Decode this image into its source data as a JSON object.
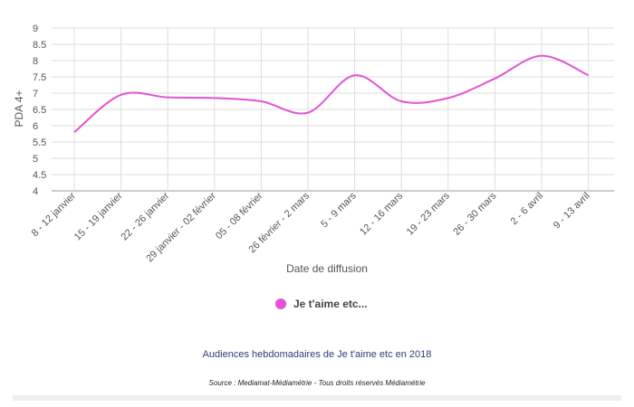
{
  "chart_data": {
    "type": "line",
    "title": "",
    "xlabel": "Date de diffusion",
    "ylabel": "PDA 4+",
    "ylim": [
      4,
      9
    ],
    "yticks": [
      "4",
      "4.5",
      "5",
      "5.5",
      "6",
      "6.5",
      "7",
      "7.5",
      "8",
      "8.5",
      "9"
    ],
    "grid": true,
    "legend_position": "bottom",
    "categories": [
      "8 - 12 janvier",
      "15 - 19 janvier",
      "22 - 26 janvier",
      "29 janvier - 02 février",
      "05 - 08 février",
      "26 février - 2 mars",
      "5 - 9 mars",
      "12 - 16 mars",
      "19 - 23 mars",
      "26 - 30 mars",
      "2 - 6 avril",
      "9 - 13 avril"
    ],
    "series": [
      {
        "name": "Je t'aime etc...",
        "color": "#e253d5",
        "values": [
          5.8,
          6.95,
          6.87,
          6.85,
          6.75,
          6.4,
          7.55,
          6.75,
          6.85,
          7.45,
          8.15,
          7.55
        ]
      }
    ]
  },
  "caption": "Audiences hebdomadaires de Je t'aime etc en 2018",
  "source": "Source : Mediamat-Médiamétrie - Tous droits réservés Médiamétrie"
}
